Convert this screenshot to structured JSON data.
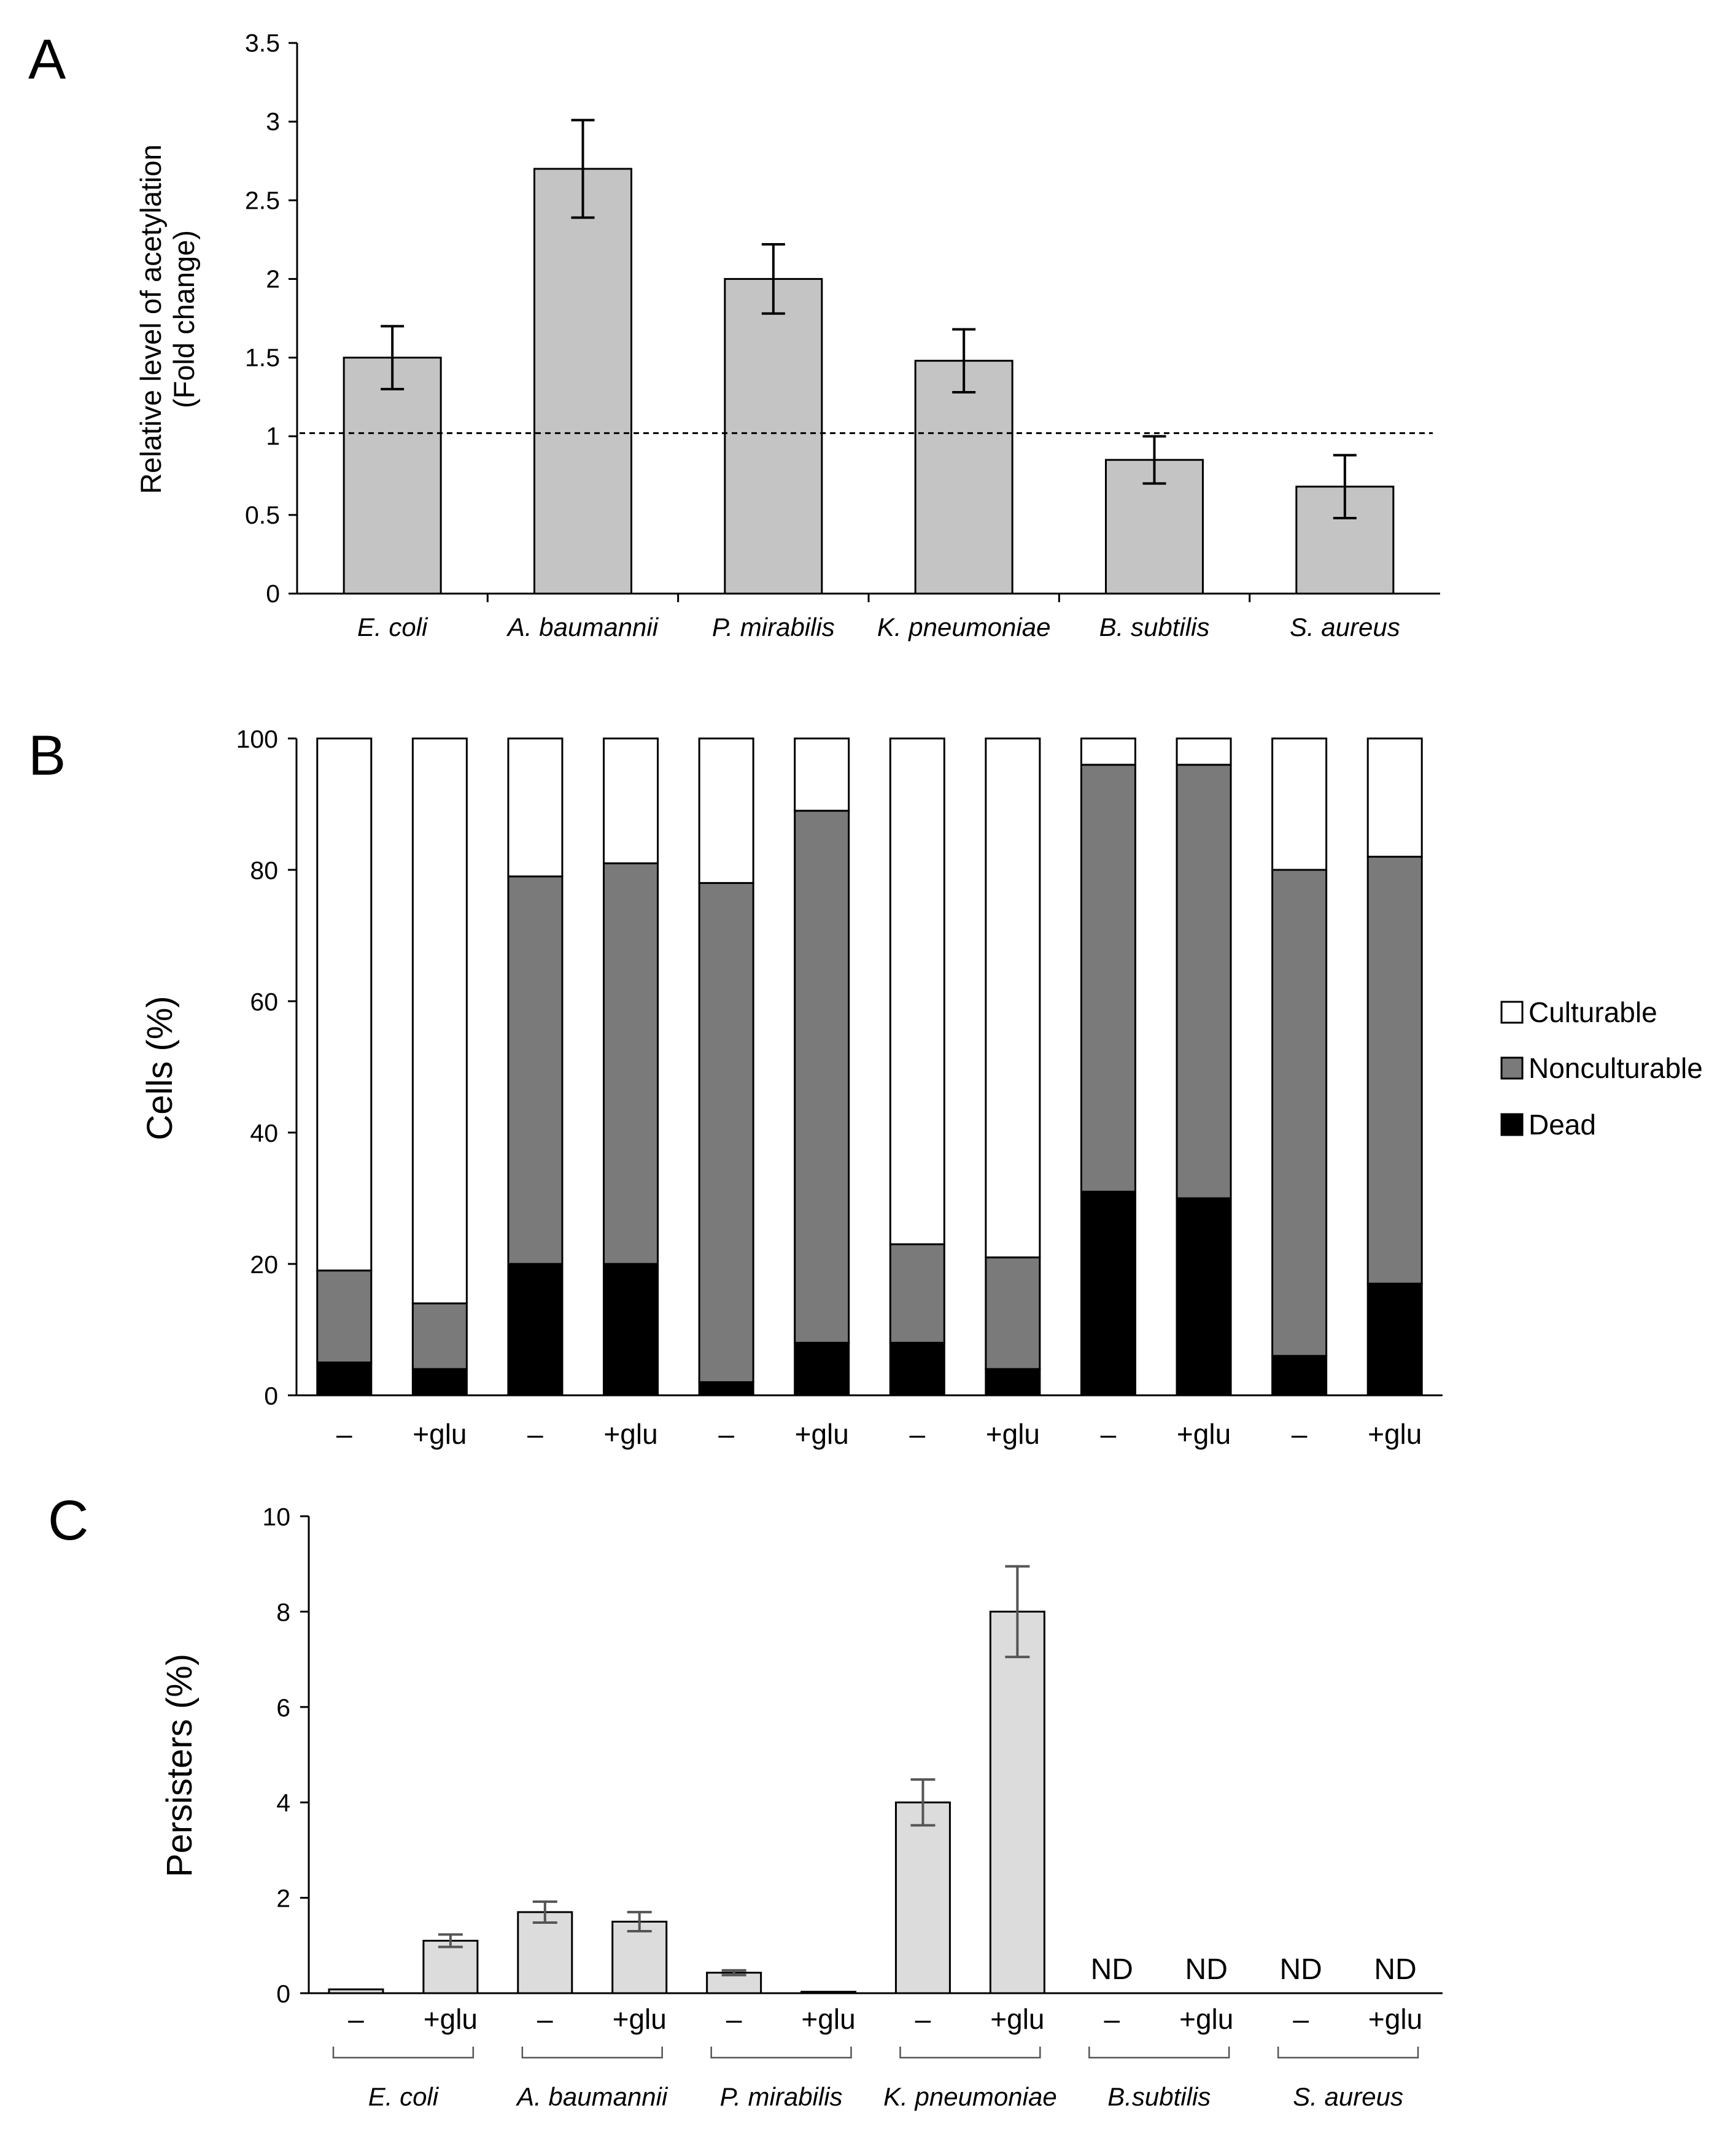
{
  "chart_data": [
    {
      "panel": "A",
      "type": "bar",
      "ylabel_lines": [
        "Relative level of acetylation",
        "(Fold change)"
      ],
      "categories": [
        "E. coli",
        "A. baumannii",
        "P. mirabilis",
        "K. pneumoniae",
        "B. subtilis",
        "S. aureus"
      ],
      "values": [
        1.5,
        2.7,
        2.0,
        1.48,
        0.85,
        0.68
      ],
      "errors": [
        0.2,
        0.31,
        0.22,
        0.2,
        0.15,
        0.2
      ],
      "ylim": [
        0,
        3.5
      ],
      "yticks": [
        "0",
        "0.5",
        "1",
        "1.5",
        "2",
        "2.5",
        "3",
        "3.5"
      ],
      "reference_line": 1.02,
      "colors": {
        "bar": "#c4c4c4",
        "reference": "#000000"
      }
    },
    {
      "panel": "B",
      "type": "bar",
      "stacked": true,
      "ylabel": "Cells (%)",
      "categories": [
        "–",
        "+glu",
        "–",
        "+glu",
        "–",
        "+glu",
        "–",
        "+glu",
        "–",
        "+glu",
        "–",
        "+glu"
      ],
      "series": [
        {
          "name": "Dead",
          "values": [
            5,
            4,
            20,
            20,
            2,
            8,
            8,
            4,
            31,
            30,
            6,
            17
          ],
          "color": "#000000"
        },
        {
          "name": "Nonculturable",
          "values": [
            14,
            10,
            59,
            61,
            76,
            81,
            15,
            17,
            65,
            66,
            74,
            65
          ],
          "color": "#7a7a7a"
        },
        {
          "name": "Culturable",
          "values": [
            81,
            86,
            21,
            19,
            22,
            11,
            77,
            79,
            4,
            4,
            20,
            18
          ],
          "color": "#ffffff"
        }
      ],
      "legend_order": [
        "Culturable",
        "Nonculturable",
        "Dead"
      ],
      "legend_position": "right",
      "ylim": [
        0,
        100
      ],
      "yticks": [
        "0",
        "20",
        "40",
        "60",
        "80",
        "100"
      ]
    },
    {
      "panel": "C",
      "type": "bar",
      "ylabel": "Persisters (%)",
      "categories": [
        "–",
        "+glu",
        "–",
        "+glu",
        "–",
        "+glu",
        "–",
        "+glu",
        "–",
        "+glu",
        "–",
        "+glu"
      ],
      "values": [
        0.08,
        1.1,
        1.7,
        1.5,
        0.43,
        0.03,
        4.0,
        8.0,
        null,
        null,
        null,
        null
      ],
      "errors": [
        0,
        0.13,
        0.22,
        0.2,
        0.05,
        0,
        0.48,
        0.95,
        null,
        null,
        null,
        null
      ],
      "value_labels": [
        "",
        "",
        "",
        "",
        "",
        "",
        "",
        "",
        "ND",
        "ND",
        "ND",
        "ND"
      ],
      "groups": [
        "E. coli",
        "A. baumannii",
        "P. mirabilis",
        "K. pneumoniae",
        "B.subtilis",
        "S. aureus"
      ],
      "ylim": [
        0,
        10
      ],
      "yticks": [
        "0",
        "2",
        "4",
        "6",
        "8",
        "10"
      ],
      "colors": {
        "bar": "#dcdcdc",
        "error": "#555555"
      }
    }
  ],
  "panel_labels": [
    "A",
    "B",
    "C"
  ]
}
